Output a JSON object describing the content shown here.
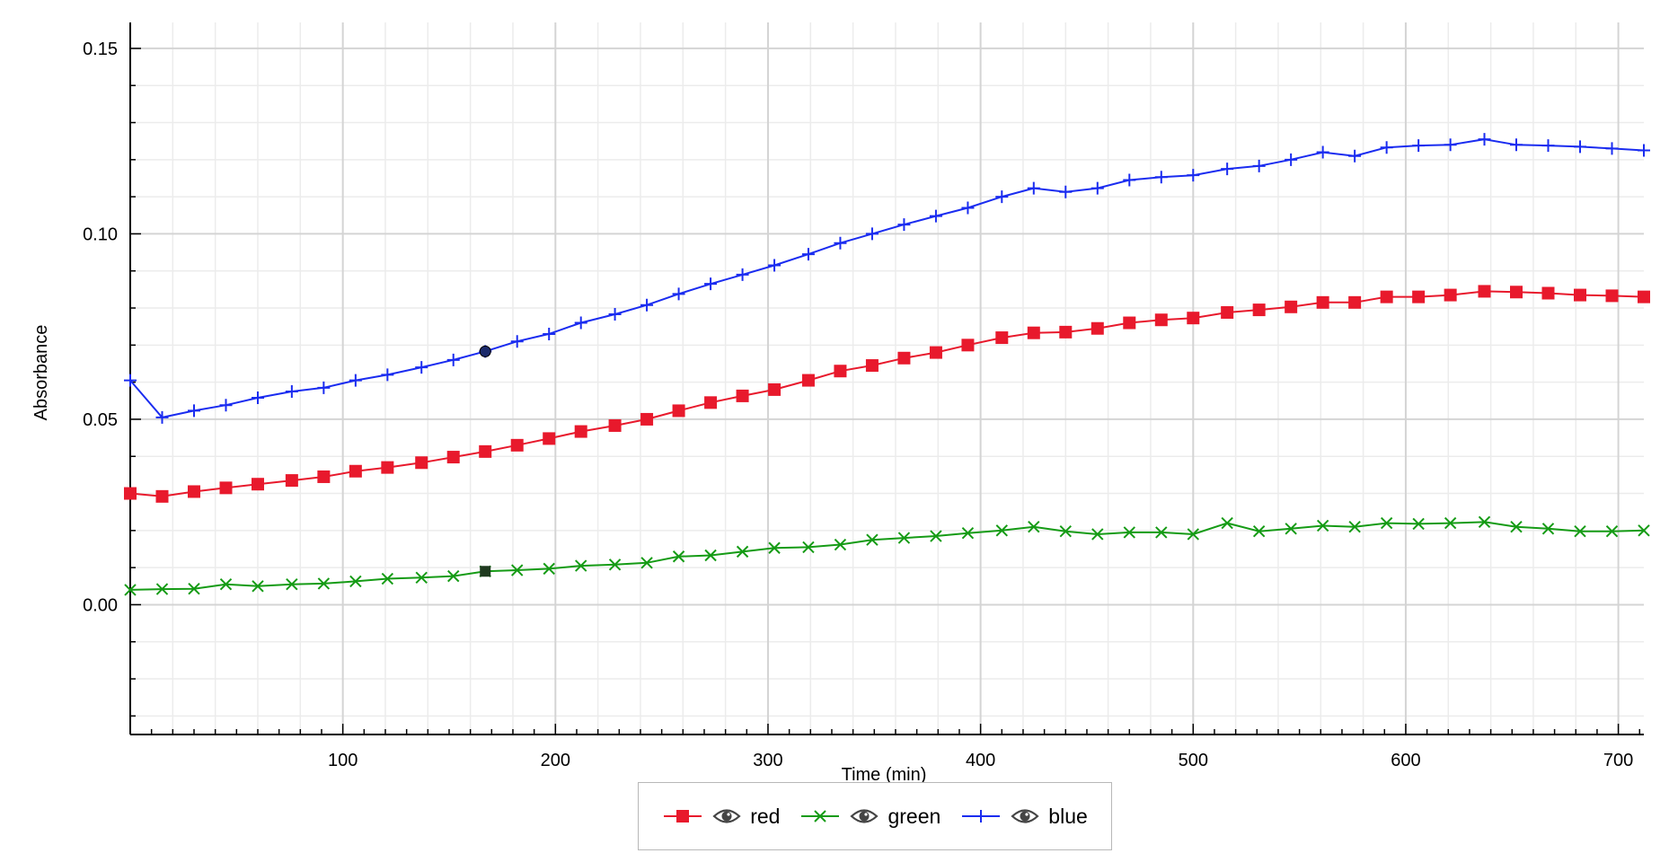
{
  "chart_data": {
    "type": "line",
    "xlabel": "Time (min)",
    "ylabel": "Absorbance",
    "xlim": [
      0,
      712
    ],
    "ylim": [
      -0.035,
      0.157
    ],
    "x_ticks": [
      100,
      200,
      300,
      400,
      500,
      600,
      700
    ],
    "y_ticks": [
      0.0,
      0.05,
      0.1,
      0.15
    ],
    "x_tick_labels": [
      "100",
      "200",
      "300",
      "400",
      "500",
      "600",
      "700"
    ],
    "y_tick_labels": [
      "0.00",
      "0.05",
      "0.10",
      "0.15"
    ],
    "grid": true,
    "legend_position": "bottom-center",
    "x": [
      0,
      15,
      30,
      45,
      60,
      76,
      91,
      106,
      121,
      137,
      152,
      167,
      182,
      197,
      212,
      228,
      243,
      258,
      273,
      288,
      303,
      319,
      334,
      349,
      364,
      379,
      394,
      410,
      425,
      440,
      455,
      470,
      485,
      500,
      516,
      531,
      546,
      561,
      576,
      591,
      606,
      621,
      637,
      652,
      667,
      682,
      697,
      712
    ],
    "series": [
      {
        "name": "red",
        "color": "#e8192c",
        "marker": "square",
        "values": [
          0.03,
          0.0292,
          0.0305,
          0.0315,
          0.0325,
          0.0335,
          0.0345,
          0.036,
          0.037,
          0.0383,
          0.0398,
          0.0413,
          0.043,
          0.0448,
          0.0467,
          0.0483,
          0.05,
          0.0523,
          0.0545,
          0.0563,
          0.058,
          0.0605,
          0.063,
          0.0645,
          0.0665,
          0.068,
          0.07,
          0.072,
          0.0733,
          0.0735,
          0.0745,
          0.076,
          0.0768,
          0.0773,
          0.0788,
          0.0795,
          0.0803,
          0.0815,
          0.0815,
          0.083,
          0.083,
          0.0835,
          0.0845,
          0.0843,
          0.084,
          0.0835,
          0.0833,
          0.083
        ]
      },
      {
        "name": "green",
        "color": "#159b15",
        "marker": "x",
        "values": [
          0.004,
          0.0042,
          0.0043,
          0.0055,
          0.005,
          0.0055,
          0.0057,
          0.0063,
          0.007,
          0.0073,
          0.0077,
          0.009,
          0.0093,
          0.0097,
          0.0105,
          0.0108,
          0.0113,
          0.013,
          0.0133,
          0.0143,
          0.0153,
          0.0155,
          0.0162,
          0.0175,
          0.018,
          0.0185,
          0.0193,
          0.02,
          0.021,
          0.0198,
          0.019,
          0.0195,
          0.0195,
          0.019,
          0.022,
          0.0198,
          0.0205,
          0.0213,
          0.021,
          0.022,
          0.0218,
          0.022,
          0.0223,
          0.021,
          0.0205,
          0.0198,
          0.0198,
          0.02
        ]
      },
      {
        "name": "blue",
        "color": "#1a2cf0",
        "marker": "plus",
        "values": [
          0.0605,
          0.0505,
          0.0523,
          0.0538,
          0.0558,
          0.0575,
          0.0585,
          0.0605,
          0.062,
          0.064,
          0.066,
          0.0683,
          0.071,
          0.073,
          0.076,
          0.0783,
          0.0808,
          0.0838,
          0.0865,
          0.089,
          0.0915,
          0.0945,
          0.0975,
          0.1,
          0.1025,
          0.1048,
          0.107,
          0.11,
          0.1123,
          0.1113,
          0.1123,
          0.1145,
          0.1153,
          0.1158,
          0.1175,
          0.1183,
          0.12,
          0.122,
          0.121,
          0.1233,
          0.1238,
          0.124,
          0.1255,
          0.124,
          0.1238,
          0.1235,
          0.123,
          0.1225
        ]
      }
    ],
    "highlighted_x": 167
  }
}
